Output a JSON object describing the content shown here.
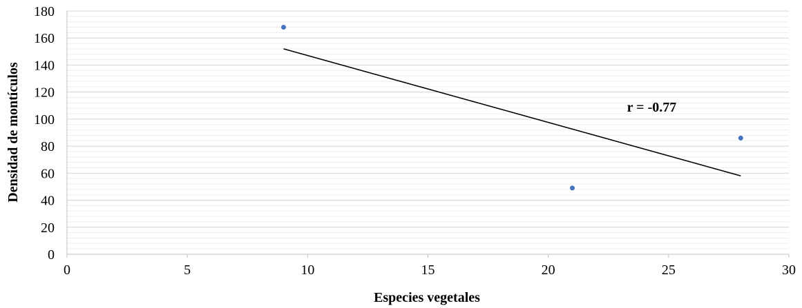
{
  "chart_data": {
    "type": "scatter",
    "title": "",
    "xlabel": "Especies vegetales",
    "ylabel": "Densidad de montículos",
    "xlim": [
      0,
      30
    ],
    "ylim": [
      0,
      180
    ],
    "x_ticks": [
      0,
      5,
      10,
      15,
      20,
      25,
      30
    ],
    "y_ticks": [
      0,
      20,
      40,
      60,
      80,
      100,
      120,
      140,
      160,
      180
    ],
    "grid": "horizontal",
    "minor_grid": true,
    "legend": "none",
    "series": [
      {
        "color": "#4472C4",
        "points": [
          {
            "x": 9,
            "y": 168
          },
          {
            "x": 21,
            "y": 49
          },
          {
            "x": 28,
            "y": 86
          }
        ]
      }
    ],
    "trendline": {
      "type": "linear",
      "color": "#000000",
      "x_start": 9,
      "y_start": 152,
      "x_end": 28,
      "y_end": 58
    },
    "annotations": [
      {
        "text": "r = -0.77",
        "x": 24.3,
        "y": 109
      }
    ]
  }
}
